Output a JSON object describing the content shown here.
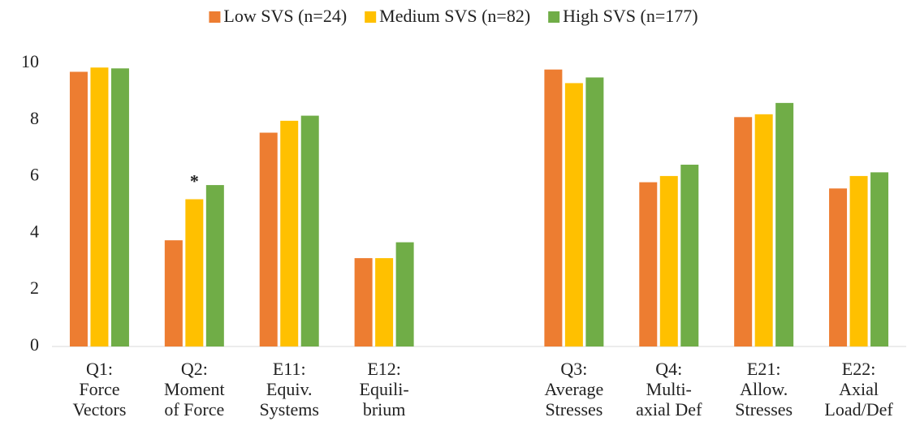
{
  "chart_data": {
    "type": "bar",
    "categories": [
      "Q1:\nForce\nVectors",
      "Q2:\nMoment\nof Force",
      "E11:\nEquiv.\nSystems",
      "E12:\nEquili-\nbrium",
      null,
      "Q3:\nAverage\nStresses",
      "Q4:\nMulti-\naxial Def",
      "E21:\nAllow.\nStresses",
      "E22:\nAxial\nLoad/Def"
    ],
    "series": [
      {
        "name": "Low SVS (n=24)",
        "color": "#ed7d31",
        "values": [
          9.7,
          3.75,
          7.55,
          3.12,
          null,
          9.78,
          5.8,
          8.1,
          5.58
        ]
      },
      {
        "name": "Medium SVS (n=82)",
        "color": "#ffc000",
        "values": [
          9.85,
          5.2,
          7.97,
          3.12,
          null,
          9.3,
          6.02,
          8.2,
          6.02
        ]
      },
      {
        "name": "High SVS (n=177)",
        "color": "#70ad47",
        "values": [
          9.82,
          5.7,
          8.15,
          3.68,
          null,
          9.5,
          6.42,
          8.6,
          6.15
        ]
      }
    ],
    "annotation": "*",
    "ylim": [
      0,
      10
    ],
    "yticks": [
      0,
      2,
      4,
      6,
      8,
      10
    ],
    "grid": false,
    "legend": "top"
  }
}
